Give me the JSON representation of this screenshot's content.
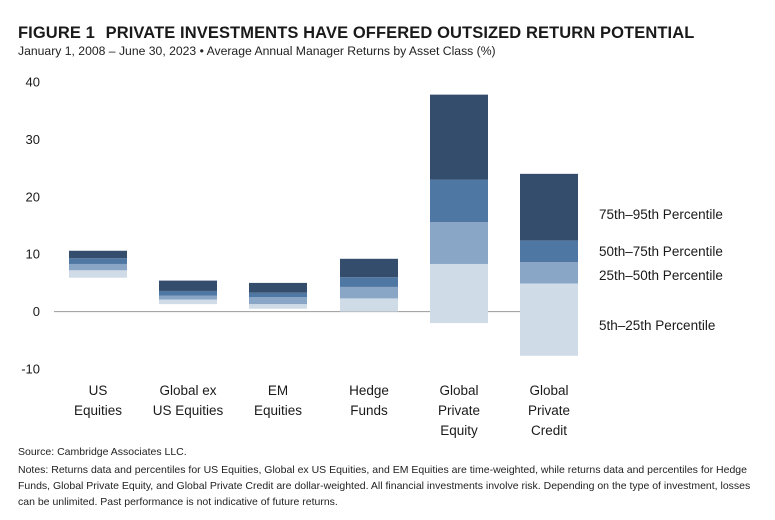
{
  "figure": {
    "label": "FIGURE 1",
    "title": "PRIVATE INVESTMENTS HAVE OFFERED OUTSIZED RETURN POTENTIAL",
    "subtitle": "January 1, 2008 – June 30, 2023 • Average Annual Manager Returns by Asset Class (%)"
  },
  "colors": {
    "p5_25": "#d0dbe8",
    "p25_50": "#8aa6c6",
    "p50_75": "#4f77a3",
    "p75_95": "#354d6c"
  },
  "chart_data": {
    "type": "bar",
    "subtype": "floating-stacked-percentile",
    "categories": [
      [
        "US",
        "Equities"
      ],
      [
        "Global ex",
        "US Equities"
      ],
      [
        "EM",
        "Equities"
      ],
      [
        "Hedge",
        "Funds"
      ],
      [
        "Global",
        "Private",
        "Equity"
      ],
      [
        "Global",
        "Private",
        "Credit"
      ]
    ],
    "percentile_bands": [
      "5th–25th Percentile",
      "25th–50th Percentile",
      "50th–75th Percentile",
      "75th–95th Percentile"
    ],
    "legend_labels_display_order": [
      "75th–95th Percentile",
      "50th–75th Percentile",
      "25th–50th Percentile",
      "5th–25th Percentile"
    ],
    "values": [
      {
        "p5": 5.9,
        "p25": 7.2,
        "p50": 8.3,
        "p75": 9.3,
        "p95": 10.6
      },
      {
        "p5": 1.3,
        "p25": 2.1,
        "p50": 2.8,
        "p75": 3.6,
        "p95": 5.4
      },
      {
        "p5": 0.5,
        "p25": 1.3,
        "p50": 2.5,
        "p75": 3.3,
        "p95": 5.0
      },
      {
        "p5": 0.0,
        "p25": 2.3,
        "p50": 4.3,
        "p75": 6.0,
        "p95": 9.2
      },
      {
        "p5": -2.0,
        "p25": 8.3,
        "p50": 15.6,
        "p75": 23.0,
        "p95": 37.8
      },
      {
        "p5": -7.7,
        "p25": 4.9,
        "p50": 8.6,
        "p75": 12.4,
        "p95": 24.0
      }
    ],
    "yticks": [
      40,
      30,
      20,
      10,
      0,
      -10
    ],
    "ylim": [
      -10,
      40
    ],
    "grid": false,
    "legend_position": "right"
  },
  "footer": {
    "source": "Source: Cambridge Associates LLC.",
    "notes": "Notes: Returns data and percentiles for US Equities, Global ex US Equities, and EM Equities are time-weighted, while returns data and percentiles for Hedge Funds, Global Private Equity, and Global Private Credit are dollar-weighted. All financial investments involve risk. Depending on the type of investment, losses can be unlimited. Past performance is not indicative of future returns."
  }
}
